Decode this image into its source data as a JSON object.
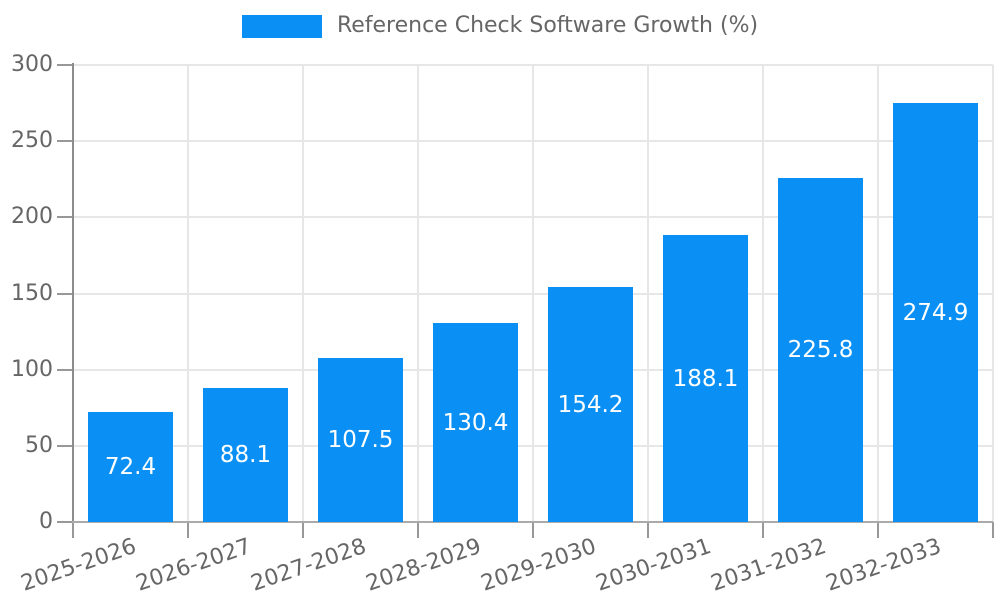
{
  "chart_data": {
    "type": "bar",
    "title": "Reference Check Software Growth (%)",
    "categories": [
      "2025-2026",
      "2026-2027",
      "2027-2028",
      "2028-2029",
      "2029-2030",
      "2030-2031",
      "2031-2032",
      "2032-2033"
    ],
    "values": [
      72.4,
      88.1,
      107.5,
      130.4,
      154.2,
      188.1,
      225.8,
      274.9
    ],
    "value_labels": [
      "72.4",
      "88.1",
      "107.5",
      "130.4",
      "154.2",
      "188.1",
      "225.8",
      "274.9"
    ],
    "xlabel": "",
    "ylabel": "",
    "ylim": [
      0,
      300
    ],
    "yticks": [
      "0",
      "50",
      "100",
      "150",
      "200",
      "250",
      "300"
    ],
    "grid": true,
    "legend": {
      "label": "Reference Check Software Growth (%)",
      "position": "top-center"
    },
    "value_label_style": {
      "position": "inside-center",
      "color": "#ffffff"
    },
    "colors": {
      "bar": "#0a90f5",
      "grid": "#e7e7e7",
      "axis": "#989898",
      "tick_text": "#666666",
      "legend_text": "#666666",
      "bar_value_text": "#ffffff",
      "background": "#ffffff"
    }
  }
}
